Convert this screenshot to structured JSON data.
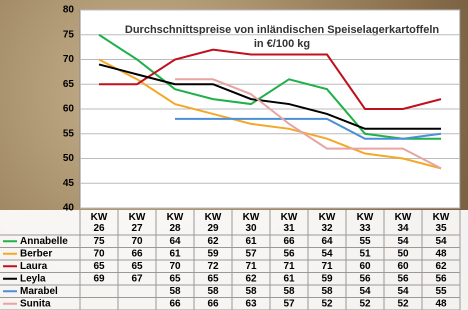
{
  "chart_data": {
    "type": "line",
    "title": "Durchschnittspreise von inländischen Speiselagerkartoffeln",
    "subtitle": "in €/100 kg",
    "categories": [
      "KW 26",
      "KW 27",
      "KW 28",
      "KW 29",
      "KW 30",
      "KW 31",
      "KW 32",
      "KW 33",
      "KW 34",
      "KW 35"
    ],
    "series": [
      {
        "name": "Annabelle",
        "color": "#1fb04a",
        "values": [
          75,
          70,
          64,
          62,
          61,
          66,
          64,
          55,
          54,
          54
        ]
      },
      {
        "name": "Berber",
        "color": "#f4a828",
        "values": [
          70,
          66,
          61,
          59,
          57,
          56,
          54,
          51,
          50,
          48
        ]
      },
      {
        "name": "Laura",
        "color": "#c0101c",
        "values": [
          65,
          65,
          70,
          72,
          71,
          71,
          71,
          60,
          60,
          62
        ]
      },
      {
        "name": "Leyla",
        "color": "#000000",
        "values": [
          69,
          67,
          65,
          65,
          62,
          61,
          59,
          56,
          56,
          56
        ]
      },
      {
        "name": "Marabel",
        "color": "#4a8fd8",
        "values": [
          null,
          null,
          58,
          58,
          58,
          58,
          58,
          54,
          54,
          55
        ]
      },
      {
        "name": "Sunita",
        "color": "#e9a3a3",
        "values": [
          null,
          null,
          66,
          66,
          63,
          57,
          52,
          52,
          52,
          48
        ]
      }
    ],
    "ylim": [
      40,
      80
    ],
    "yticks": [
      40,
      45,
      50,
      55,
      60,
      65,
      70,
      75,
      80
    ],
    "grid": true
  }
}
